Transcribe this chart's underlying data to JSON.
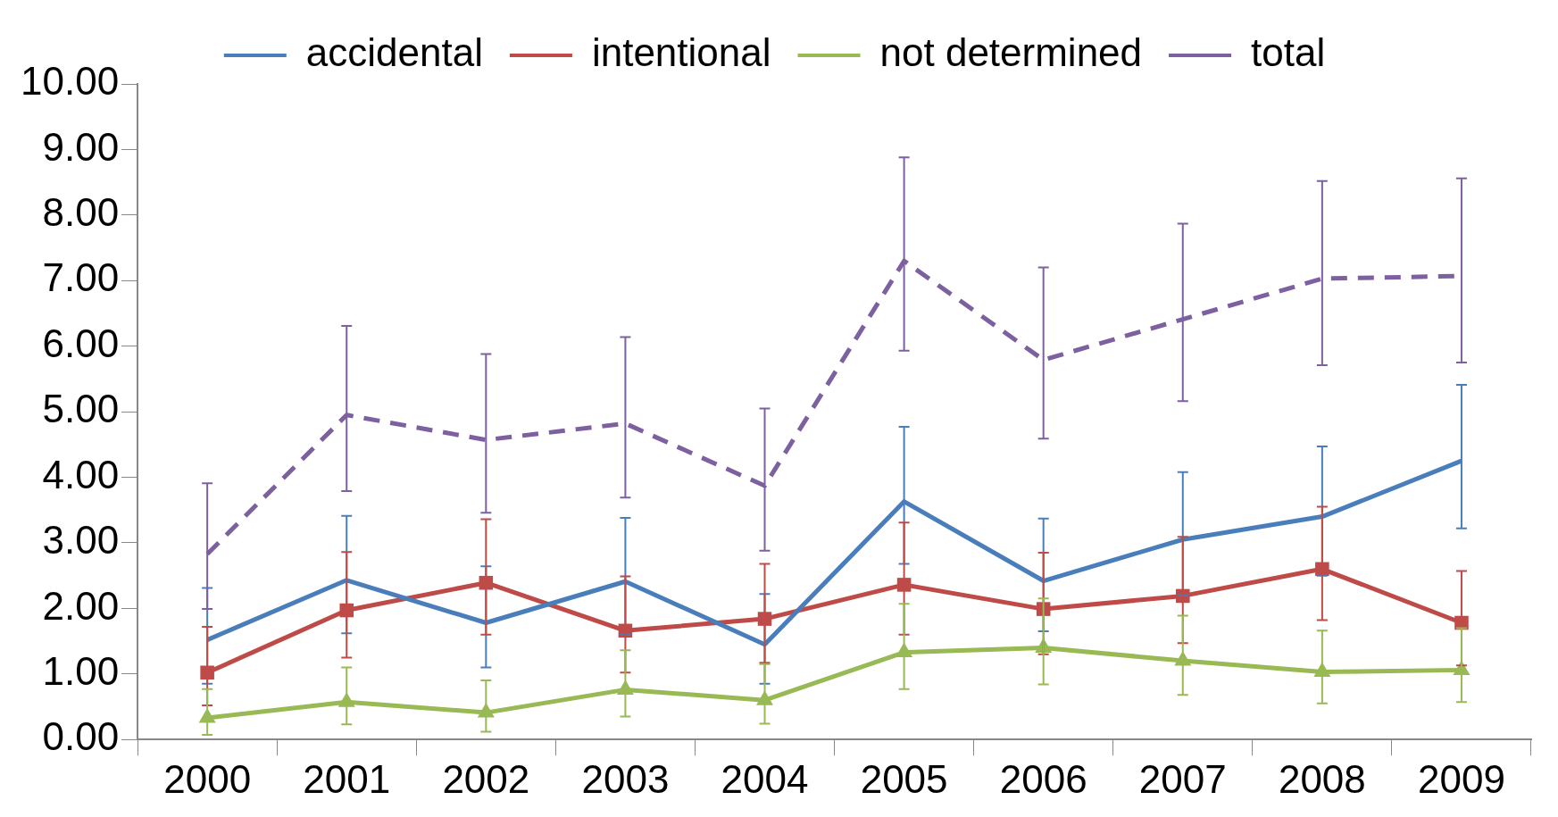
{
  "chart_data": {
    "type": "line",
    "categories": [
      "2000",
      "2001",
      "2002",
      "2003",
      "2004",
      "2005",
      "2006",
      "2007",
      "2008",
      "2009"
    ],
    "ylim": [
      0,
      10
    ],
    "yticks": [
      {
        "value": 0,
        "label": "0.00"
      },
      {
        "value": 1,
        "label": "1.00"
      },
      {
        "value": 2,
        "label": "2.00"
      },
      {
        "value": 3,
        "label": "3.00"
      },
      {
        "value": 4,
        "label": "4.00"
      },
      {
        "value": 5,
        "label": "5.00"
      },
      {
        "value": 6,
        "label": "6.00"
      },
      {
        "value": 7,
        "label": "7.00"
      },
      {
        "value": 8,
        "label": "8.00"
      },
      {
        "value": 9,
        "label": "9.00"
      },
      {
        "value": 10,
        "label": "10.00"
      }
    ],
    "grid": false,
    "legend": "top",
    "series": [
      {
        "name": "accidental",
        "color": "#4a7ebb",
        "marker": "none",
        "line_style": "solid",
        "values": [
          1.52,
          2.43,
          1.78,
          2.41,
          1.45,
          3.63,
          2.42,
          3.05,
          3.4,
          4.25
        ],
        "errors": [
          [
            0.85,
            2.31
          ],
          [
            1.62,
            3.41
          ],
          [
            1.1,
            2.64
          ],
          [
            1.6,
            3.38
          ],
          [
            0.85,
            2.22
          ],
          [
            2.68,
            4.77
          ],
          [
            1.65,
            3.37
          ],
          [
            2.2,
            4.08
          ],
          [
            2.5,
            4.47
          ],
          [
            3.22,
            5.41
          ]
        ]
      },
      {
        "name": "intentional",
        "color": "#be4b48",
        "marker": "square",
        "line_style": "solid",
        "values": [
          1.02,
          1.97,
          2.39,
          1.66,
          1.84,
          2.36,
          1.99,
          2.19,
          2.6,
          1.78
        ],
        "errors": [
          [
            0.52,
            1.72
          ],
          [
            1.25,
            2.86
          ],
          [
            1.6,
            3.36
          ],
          [
            1.02,
            2.49
          ],
          [
            1.17,
            2.68
          ],
          [
            1.6,
            3.31
          ],
          [
            1.3,
            2.85
          ],
          [
            1.47,
            3.09
          ],
          [
            1.82,
            3.55
          ],
          [
            1.13,
            2.57
          ]
        ]
      },
      {
        "name": "not determined",
        "color": "#98b954",
        "marker": "triangle",
        "line_style": "solid",
        "values": [
          0.33,
          0.57,
          0.41,
          0.76,
          0.6,
          1.33,
          1.4,
          1.2,
          1.03,
          1.06
        ],
        "errors": [
          [
            0.07,
            0.77
          ],
          [
            0.23,
            1.1
          ],
          [
            0.12,
            0.9
          ],
          [
            0.35,
            1.36
          ],
          [
            0.24,
            1.15
          ],
          [
            0.77,
            2.07
          ],
          [
            0.84,
            2.15
          ],
          [
            0.68,
            1.89
          ],
          [
            0.55,
            1.66
          ],
          [
            0.57,
            1.7
          ]
        ]
      },
      {
        "name": "total",
        "color": "#7d60a0",
        "marker": "none",
        "line_style": "dashed",
        "values": [
          2.83,
          4.95,
          4.57,
          4.82,
          3.87,
          7.3,
          5.79,
          6.41,
          7.03,
          7.07
        ],
        "errors": [
          [
            1.99,
            3.91
          ],
          [
            3.79,
            6.31
          ],
          [
            3.46,
            5.88
          ],
          [
            3.69,
            6.14
          ],
          [
            2.88,
            5.05
          ],
          [
            5.93,
            8.88
          ],
          [
            4.59,
            7.2
          ],
          [
            5.16,
            7.87
          ],
          [
            5.71,
            8.52
          ],
          [
            5.75,
            8.56
          ]
        ]
      }
    ]
  }
}
